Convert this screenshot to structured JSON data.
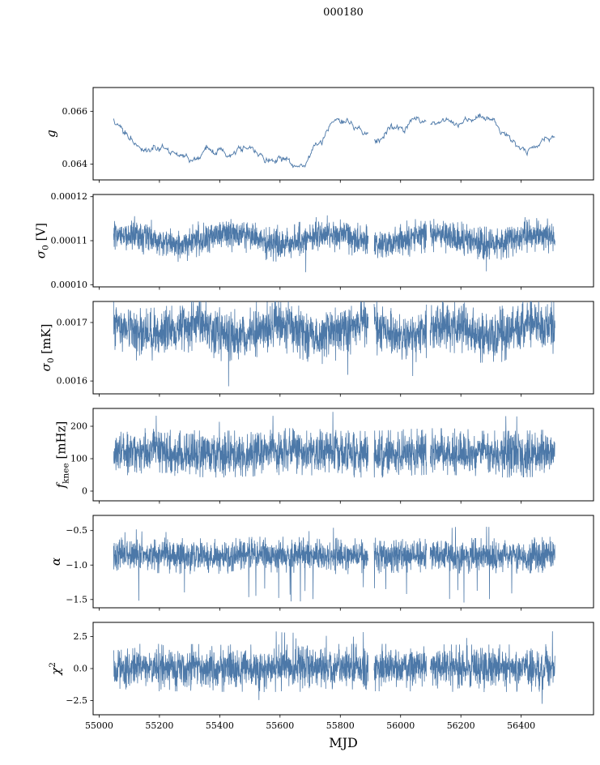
{
  "title": "000180",
  "figure": {
    "background": "#ffffff",
    "line_color": "#4c78a8",
    "axis_color": "#000000"
  },
  "x_axis": {
    "label": "MJD",
    "xlim": [
      54980,
      56640
    ],
    "ticks": [
      55000,
      55200,
      55400,
      55600,
      55800,
      56000,
      56200,
      56400
    ],
    "tick_labels": [
      "55000",
      "55200",
      "55400",
      "55600",
      "55800",
      "56000",
      "56200",
      "56400"
    ],
    "data_start": 55048,
    "data_end": 56512,
    "gaps": [
      [
        55893,
        55912
      ],
      [
        56086,
        56098
      ]
    ]
  },
  "chart_data": [
    {
      "type": "line",
      "name": "gain",
      "ylabel_text": "g",
      "ylabel_segments": [
        {
          "t": "g",
          "style": "italic"
        }
      ],
      "ylim": [
        0.0634,
        0.0669
      ],
      "yticks": [
        0.064,
        0.066
      ],
      "ytick_labels": [
        "0.064",
        "0.066"
      ],
      "signal": {
        "kind": "smooth",
        "start": 0.0658,
        "min": 0.0641,
        "max": 0.0662,
        "floor": 0.0639,
        "ceil": 0.0663,
        "reversion": 0.03,
        "step_sigma": 5e-05,
        "jitter": 3e-05,
        "retarget_prob": 0.015,
        "points": 700,
        "seed": 7
      }
    },
    {
      "type": "line",
      "name": "sigma0-volts",
      "ylabel_text": "sigma0 [V]",
      "ylabel_segments": [
        {
          "t": "σ",
          "style": "italic"
        },
        {
          "t": "0",
          "style": "sub"
        },
        {
          "t": " [V]",
          "style": "normal"
        }
      ],
      "ylim": [
        9.95e-05,
        0.0001205
      ],
      "yticks": [
        0.0001,
        0.00011,
        0.00012
      ],
      "ytick_labels": [
        "0.00010",
        "0.00011",
        "0.00012"
      ],
      "signal": {
        "kind": "noisy",
        "center": 0.0001105,
        "sigma": 1.6e-06,
        "clip": 4.2e-06,
        "slow_amp": 1.1e-06,
        "slow_cycles": 4.3,
        "phase": 0.8,
        "spike_prob": 0.0009,
        "spike_lo": 0.0001016,
        "down_ratio": 1,
        "points": 2300,
        "seed": 101
      }
    },
    {
      "type": "line",
      "name": "sigma0-millikelvin",
      "ylabel_text": "sigma0 [mK]",
      "ylabel_segments": [
        {
          "t": "σ",
          "style": "italic"
        },
        {
          "t": "0",
          "style": "sub"
        },
        {
          "t": " [mK]",
          "style": "normal"
        }
      ],
      "ylim": [
        0.001578,
        0.001736
      ],
      "yticks": [
        0.0016,
        0.0017
      ],
      "ytick_labels": [
        "0.0016",
        "0.0017"
      ],
      "signal": {
        "kind": "noisy",
        "center": 0.001687,
        "sigma": 2e-05,
        "clip": 4.8e-05,
        "slow_amp": 1e-05,
        "slow_cycles": 5.2,
        "phase": 2.0,
        "spike_prob": 0.003,
        "spike_lo": 0.001586,
        "down_ratio": 1,
        "points": 2300,
        "seed": 202
      }
    },
    {
      "type": "line",
      "name": "f-knee",
      "ylabel_text": "fknee [mHz]",
      "ylabel_segments": [
        {
          "t": "f",
          "style": "italic"
        },
        {
          "t": "knee",
          "style": "sub"
        },
        {
          "t": " [mHz]",
          "style": "normal"
        }
      ],
      "ylim": [
        -30,
        255
      ],
      "yticks": [
        0,
        100,
        200
      ],
      "ytick_labels": [
        "0",
        "100",
        "200"
      ],
      "signal": {
        "kind": "noisy",
        "center": 118,
        "sigma": 33,
        "clip": 72,
        "slow_amp": 4,
        "slow_cycles": 3,
        "phase": 0.3,
        "spike_prob": 0.004,
        "spike_hi": 247,
        "down_ratio": 0,
        "points": 2300,
        "seed": 303
      }
    },
    {
      "type": "line",
      "name": "alpha",
      "ylabel_text": "alpha",
      "ylabel_segments": [
        {
          "t": "α",
          "style": "italic"
        }
      ],
      "ylim": [
        -1.62,
        -0.28
      ],
      "yticks": [
        -0.5,
        -1.0,
        -1.5
      ],
      "ytick_labels": [
        "−0.5",
        "−1.0",
        "−1.5"
      ],
      "signal": {
        "kind": "noisy",
        "center": -0.86,
        "sigma": 0.11,
        "clip": 0.26,
        "slow_amp": 0.012,
        "slow_cycles": 3,
        "phase": 1.1,
        "spike_prob": 0.012,
        "spike_lo": -1.56,
        "spike_hi": -0.44,
        "down_ratio": 0.88,
        "points": 2300,
        "seed": 404
      }
    },
    {
      "type": "line",
      "name": "chi-squared",
      "ylabel_text": "chi2",
      "ylabel_segments": [
        {
          "t": "χ",
          "style": "italic"
        },
        {
          "t": "2",
          "style": "sup"
        }
      ],
      "ylim": [
        -3.6,
        3.6
      ],
      "yticks": [
        -2.5,
        0.0,
        2.5
      ],
      "ytick_labels": [
        "−2.5",
        "0.0",
        "2.5"
      ],
      "signal": {
        "kind": "noisy",
        "center": 0.05,
        "sigma": 0.78,
        "clip": 1.85,
        "slow_amp": 0.03,
        "slow_cycles": 2,
        "phase": 0.5,
        "spike_prob": 0.005,
        "spike_lo": -3.0,
        "spike_hi": 2.95,
        "down_ratio": 0.5,
        "points": 2300,
        "seed": 505
      }
    }
  ]
}
